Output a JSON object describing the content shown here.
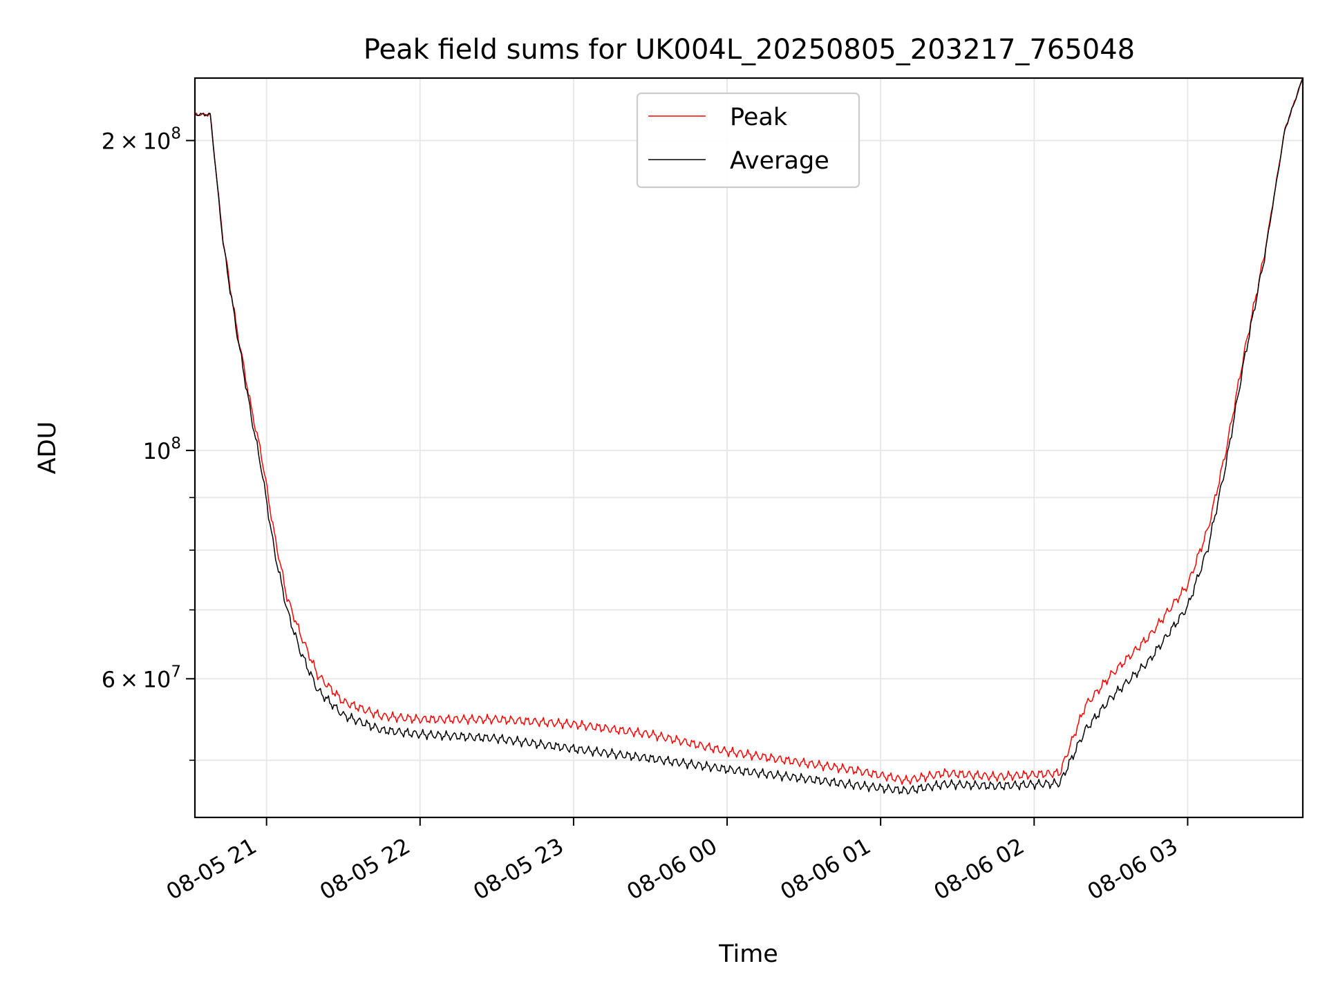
{
  "chart_data": {
    "type": "line",
    "title": "Peak field sums for UK004L_20250805_203217_765048",
    "xlabel": "Time",
    "ylabel": "ADU",
    "y_scale": "log",
    "ylim": [
      44000000,
      230000000
    ],
    "xlim": [
      "2025-08-05 20:32",
      "2025-08-06 03:45"
    ],
    "grid": true,
    "legend_position": "top-center",
    "x_ticks": [
      {
        "t": "2025-08-05 21:00",
        "label": "08-05 21"
      },
      {
        "t": "2025-08-05 22:00",
        "label": "08-05 22"
      },
      {
        "t": "2025-08-05 23:00",
        "label": "08-05 23"
      },
      {
        "t": "2025-08-06 00:00",
        "label": "08-06 00"
      },
      {
        "t": "2025-08-06 01:00",
        "label": "08-06 01"
      },
      {
        "t": "2025-08-06 02:00",
        "label": "08-06 02"
      },
      {
        "t": "2025-08-06 03:00",
        "label": "08-06 03"
      }
    ],
    "y_major_ticks": [
      {
        "value": 60000000,
        "mantissa": "6",
        "exp": "7"
      },
      {
        "value": 100000000,
        "mantissa": "",
        "exp": "8"
      },
      {
        "value": 200000000,
        "mantissa": "2",
        "exp": "8"
      }
    ],
    "y_minor_ticks": [
      50000000,
      70000000,
      80000000,
      90000000
    ],
    "series": [
      {
        "name": "Peak",
        "color": "#ff0000",
        "x": [
          "2025-08-05 20:32",
          "2025-08-05 20:38",
          "2025-08-05 20:43",
          "2025-08-05 20:48",
          "2025-08-05 20:54",
          "2025-08-05 20:58",
          "2025-08-05 21:03",
          "2025-08-05 21:08",
          "2025-08-05 21:13",
          "2025-08-05 21:20",
          "2025-08-05 21:30",
          "2025-08-05 21:45",
          "2025-08-05 22:00",
          "2025-08-05 22:30",
          "2025-08-05 23:00",
          "2025-08-05 23:30",
          "2025-08-06 00:00",
          "2025-08-06 00:30",
          "2025-08-06 00:50",
          "2025-08-06 01:10",
          "2025-08-06 01:25",
          "2025-08-06 01:45",
          "2025-08-06 02:10",
          "2025-08-06 02:20",
          "2025-08-06 02:30",
          "2025-08-06 02:45",
          "2025-08-06 03:00",
          "2025-08-06 03:08",
          "2025-08-06 03:15",
          "2025-08-06 03:22",
          "2025-08-06 03:30",
          "2025-08-06 03:38",
          "2025-08-06 03:45"
        ],
        "values": [
          212000000,
          212000000,
          160000000,
          133000000,
          110000000,
          99000000,
          83000000,
          72000000,
          66500000,
          60500000,
          57000000,
          55200000,
          54800000,
          54800000,
          54200000,
          53000000,
          51000000,
          49700000,
          48900000,
          47800000,
          48600000,
          48200000,
          48600000,
          56500000,
          60500000,
          66000000,
          74000000,
          84000000,
          100000000,
          124000000,
          155000000,
          205000000,
          230000000
        ]
      },
      {
        "name": "Average",
        "color": "#000000",
        "x": [
          "2025-08-05 20:32",
          "2025-08-05 20:38",
          "2025-08-05 20:43",
          "2025-08-05 20:48",
          "2025-08-05 20:54",
          "2025-08-05 20:58",
          "2025-08-05 21:03",
          "2025-08-05 21:08",
          "2025-08-05 21:13",
          "2025-08-05 21:20",
          "2025-08-05 21:30",
          "2025-08-05 21:45",
          "2025-08-05 22:00",
          "2025-08-05 22:30",
          "2025-08-05 23:00",
          "2025-08-05 23:30",
          "2025-08-06 00:00",
          "2025-08-06 00:30",
          "2025-08-06 00:50",
          "2025-08-06 01:10",
          "2025-08-06 01:25",
          "2025-08-06 01:45",
          "2025-08-06 02:10",
          "2025-08-06 02:20",
          "2025-08-06 02:30",
          "2025-08-06 02:45",
          "2025-08-06 03:00",
          "2025-08-06 03:08",
          "2025-08-06 03:15",
          "2025-08-06 03:22",
          "2025-08-06 03:30",
          "2025-08-06 03:38",
          "2025-08-06 03:45"
        ],
        "values": [
          212000000,
          212000000,
          159000000,
          132000000,
          108000000,
          96000000,
          80000000,
          70000000,
          64000000,
          58500000,
          55300000,
          53500000,
          53000000,
          52500000,
          51300000,
          50200000,
          49000000,
          48000000,
          47300000,
          46700000,
          47400000,
          47200000,
          47500000,
          53500000,
          57500000,
          62500000,
          70500000,
          80500000,
          97000000,
          122000000,
          154000000,
          205000000,
          230000000
        ]
      }
    ]
  }
}
